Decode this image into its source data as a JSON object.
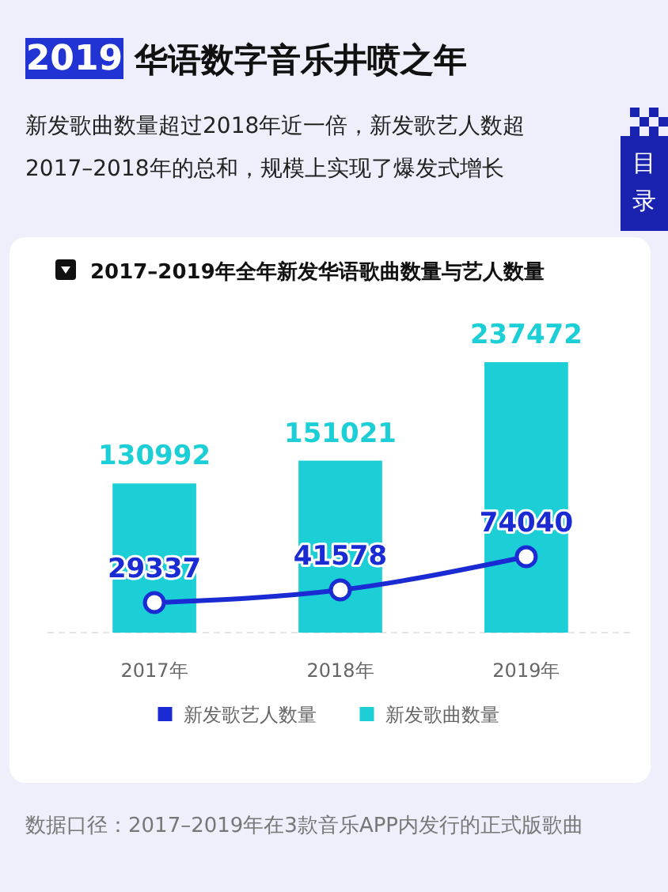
{
  "chart_data": {
    "type": "bar",
    "title": "2019 华语数字音乐井喷之年",
    "subtitle": "新发歌曲数量超过2018年近一倍，新发歌艺人数超2017–2018年的总和，规模上实现了爆发式增长",
    "annotations": [
      "2017–2019年全年新发华语歌曲数量与艺人数量",
      "目录",
      "数据口径：2017–2019年在3款音乐APP内发行的正式版歌曲"
    ],
    "categories": [
      "2017年",
      "2018年",
      "2019年"
    ],
    "series": [
      {
        "name": "新发歌艺人数量",
        "type": "line",
        "axis": "y2",
        "color": "#1a2bd4",
        "values": [
          29337,
          41578,
          74040
        ]
      },
      {
        "name": "新发歌曲数量",
        "color": "#1ccfd6",
        "values": [
          130992,
          151021,
          237472
        ]
      }
    ],
    "data_labels": true,
    "legend": "bottom",
    "marker": "circle",
    "line_style": "solid"
  }
}
